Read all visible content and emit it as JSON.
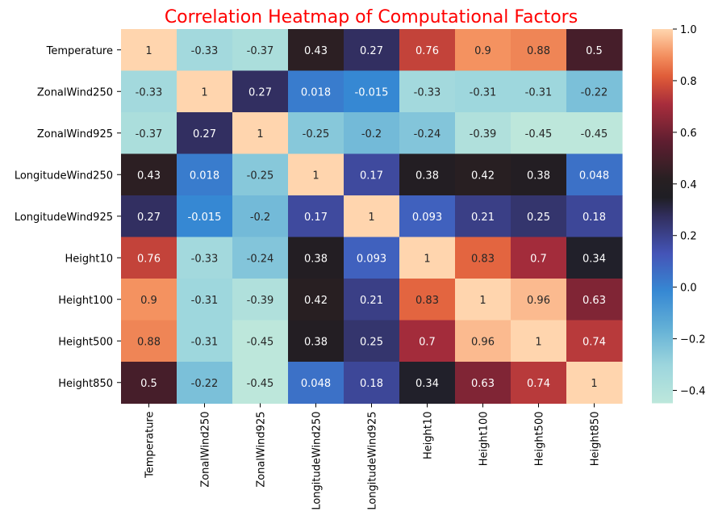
{
  "chart_data": {
    "type": "heatmap",
    "title": "Correlation Heatmap of Computational Factors",
    "title_color": "#ff0000",
    "colormap": "icefire",
    "rows": [
      "Temperature",
      "ZonalWind250",
      "ZonalWind925",
      "LongitudeWind250",
      "LongitudeWind925",
      "Height10",
      "Height100",
      "Height500",
      "Height850"
    ],
    "columns": [
      "Temperature",
      "ZonalWind250",
      "ZonalWind925",
      "LongitudeWind250",
      "LongitudeWind925",
      "Height10",
      "Height100",
      "Height500",
      "Height850"
    ],
    "values": [
      [
        1,
        -0.33,
        -0.37,
        0.43,
        0.27,
        0.76,
        0.9,
        0.88,
        0.5
      ],
      [
        -0.33,
        1,
        0.27,
        0.018,
        -0.015,
        -0.33,
        -0.31,
        -0.31,
        -0.22
      ],
      [
        -0.37,
        0.27,
        1,
        -0.25,
        -0.2,
        -0.24,
        -0.39,
        -0.45,
        -0.45
      ],
      [
        0.43,
        0.018,
        -0.25,
        1,
        0.17,
        0.38,
        0.42,
        0.38,
        0.048
      ],
      [
        0.27,
        -0.015,
        -0.2,
        0.17,
        1,
        0.093,
        0.21,
        0.25,
        0.18
      ],
      [
        0.76,
        -0.33,
        -0.24,
        0.38,
        0.093,
        1,
        0.83,
        0.7,
        0.34
      ],
      [
        0.9,
        -0.31,
        -0.39,
        0.42,
        0.21,
        0.83,
        1,
        0.96,
        0.63
      ],
      [
        0.88,
        -0.31,
        -0.45,
        0.38,
        0.25,
        0.7,
        0.96,
        1,
        0.74
      ],
      [
        0.5,
        -0.22,
        -0.45,
        0.048,
        0.18,
        0.34,
        0.63,
        0.74,
        1
      ]
    ],
    "cell_labels": [
      [
        "1",
        "-0.33",
        "-0.37",
        "0.43",
        "0.27",
        "0.76",
        "0.9",
        "0.88",
        "0.5"
      ],
      [
        "-0.33",
        "1",
        "0.27",
        "0.018",
        "-0.015",
        "-0.33",
        "-0.31",
        "-0.31",
        "-0.22"
      ],
      [
        "-0.37",
        "0.27",
        "1",
        "-0.25",
        "-0.2",
        "-0.24",
        "-0.39",
        "-0.45",
        "-0.45"
      ],
      [
        "0.43",
        "0.018",
        "-0.25",
        "1",
        "0.17",
        "0.38",
        "0.42",
        "0.38",
        "0.048"
      ],
      [
        "0.27",
        "-0.015",
        "-0.2",
        "0.17",
        "1",
        "0.093",
        "0.21",
        "0.25",
        "0.18"
      ],
      [
        "0.76",
        "-0.33",
        "-0.24",
        "0.38",
        "0.093",
        "1",
        "0.83",
        "0.7",
        "0.34"
      ],
      [
        "0.9",
        "-0.31",
        "-0.39",
        "0.42",
        "0.21",
        "0.83",
        "1",
        "0.96",
        "0.63"
      ],
      [
        "0.88",
        "-0.31",
        "-0.45",
        "0.38",
        "0.25",
        "0.7",
        "0.96",
        "1",
        "0.74"
      ],
      [
        "0.5",
        "-0.22",
        "-0.45",
        "0.048",
        "0.18",
        "0.34",
        "0.63",
        "0.74",
        "1"
      ]
    ],
    "colorbar": {
      "range": [
        -0.45,
        1.0
      ],
      "ticks": [
        -0.4,
        -0.2,
        0.0,
        0.2,
        0.4,
        0.6,
        0.8,
        1.0
      ],
      "tick_labels": [
        "−0.4",
        "−0.2",
        "0.0",
        "0.2",
        "0.4",
        "0.6",
        "0.8",
        "1.0"
      ],
      "placement": "right"
    },
    "grid": false
  }
}
